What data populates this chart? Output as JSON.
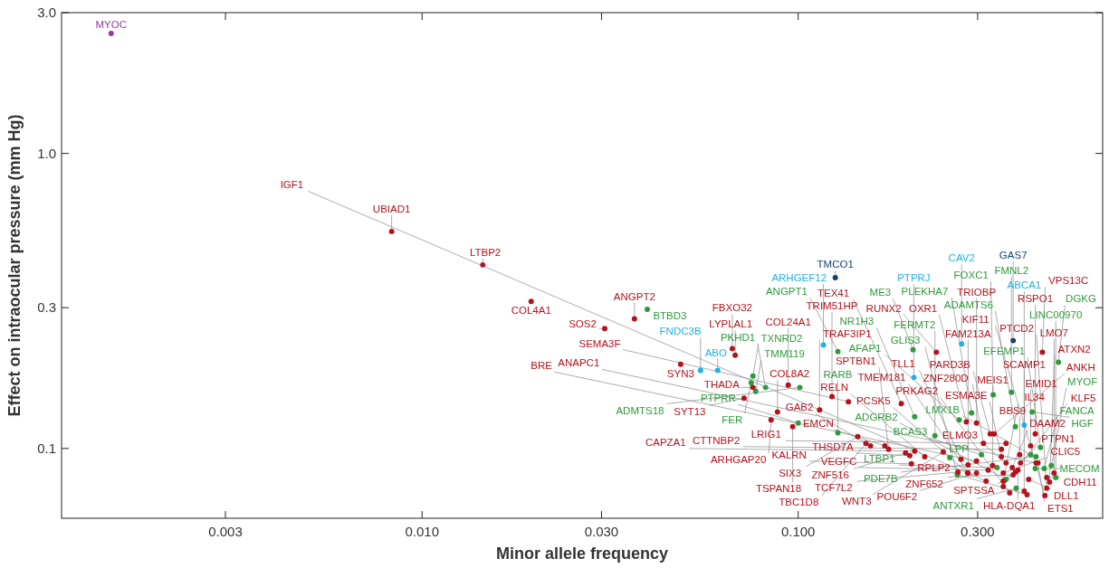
{
  "chart_data": {
    "type": "scatter",
    "xlabel": "Minor allele frequency",
    "ylabel": "Effect on intraocular pressure (mm Hg)",
    "log": "xy",
    "marker": "circle",
    "xlim": [
      0.0011,
      0.645
    ],
    "xticks": [
      {
        "value": 0.003,
        "label": "0.003"
      },
      {
        "value": 0.01,
        "label": "0.010"
      },
      {
        "value": 0.03,
        "label": "0.030"
      },
      {
        "value": 0.1,
        "label": "0.100"
      },
      {
        "value": 0.3,
        "label": "0.300"
      }
    ],
    "ylim": [
      0.058,
      3
    ],
    "yticks": [
      {
        "value": 0.1,
        "label": "0.1"
      },
      {
        "value": 0.3,
        "label": "0.3"
      },
      {
        "value": 1,
        "label": "1.0"
      },
      {
        "value": 3,
        "label": "3.0"
      }
    ],
    "series": [
      {
        "color": "#8e3f98",
        "x": [
          0.00149
        ],
        "values": [
          2.55
        ]
      },
      {
        "color": "#13426e",
        "x": [
          0.1255,
          0.373
        ],
        "values": [
          0.379,
          0.232
        ]
      },
      {
        "color": "#1fb1e6",
        "x": [
          0.1167,
          0.272,
          0.203,
          0.0611,
          0.055,
          0.399
        ],
        "values": [
          0.224,
          0.226,
          0.174,
          0.184,
          0.184,
          0.12
        ]
      },
      {
        "color": "#2e9b3b",
        "x": [
          0.0397,
          0.202,
          0.268,
          0.204,
          0.289,
          0.492,
          0.1275,
          0.101,
          0.0819,
          0.0758,
          0.075,
          0.0771,
          0.1,
          0.1275,
          0.415,
          0.33,
          0.429,
          0.427,
          0.451,
          0.484,
          0.369,
          0.38,
          0.419,
          0.441,
          0.471,
          0.307,
          0.378,
          0.231,
          0.253,
          0.265,
          0.338,
          0.357
        ],
        "values": [
          0.296,
          0.216,
          0.125,
          0.128,
          0.132,
          0.196,
          0.213,
          0.161,
          0.161,
          0.176,
          0.167,
          0.156,
          0.122,
          0.113,
          0.0952,
          0.152,
          0.0938,
          0.0855,
          0.0855,
          0.0797,
          0.155,
          0.0733,
          0.133,
          0.1007,
          0.0875,
          0.0952,
          0.1186,
          0.1104,
          0.0931,
          0.0814,
          0.0861,
          0.0786
        ]
      },
      {
        "color": "#b5121b",
        "x": [
          0.0083,
          0.0145,
          0.0195,
          0.0367,
          0.0306,
          0.0487,
          0.0668,
          0.068,
          0.0758,
          0.0718,
          0.0941,
          0.0881,
          0.0847,
          0.123,
          0.114,
          0.136,
          0.0967,
          0.144,
          0.233,
          0.446,
          0.188,
          0.28,
          0.1514,
          0.1557,
          0.17,
          0.174,
          0.193,
          0.198,
          0.204,
          0.2,
          0.217,
          0.243,
          0.266,
          0.271,
          0.282,
          0.283,
          0.283,
          0.298,
          0.298,
          0.298,
          0.311,
          0.316,
          0.32,
          0.324,
          0.332,
          0.329,
          0.347,
          0.347,
          0.351,
          0.351,
          0.351,
          0.357,
          0.357,
          0.371,
          0.373,
          0.378,
          0.384,
          0.388,
          0.39,
          0.399,
          0.406,
          0.41,
          0.365,
          0.415,
          0.427,
          0.429,
          0.434,
          0.453,
          0.458,
          0.458,
          0.466,
          0.479
        ],
        "values": [
          0.544,
          0.419,
          0.315,
          0.275,
          0.255,
          0.193,
          0.218,
          0.207,
          0.161,
          0.148,
          0.164,
          0.133,
          0.125,
          0.15,
          0.135,
          0.144,
          0.1186,
          0.1096,
          0.212,
          0.212,
          0.142,
          0.123,
          0.104,
          0.1021,
          0.1021,
          0.0993,
          0.0966,
          0.0945,
          0.0979,
          0.0887,
          0.0938,
          0.0972,
          0.0832,
          0.0919,
          0.0826,
          0.088,
          0.0826,
          0.0906,
          0.0826,
          0.122,
          0.104,
          0.0775,
          0.0844,
          0.112,
          0.112,
          0.0875,
          0.0938,
          0.0993,
          0.0775,
          0.0743,
          0.0826,
          0.0893,
          0.104,
          0.0861,
          0.0814,
          0.0832,
          0.0844,
          0.0952,
          0.0893,
          0.0717,
          0.0697,
          0.0786,
          0.0707,
          0.1021,
          0.112,
          0.0893,
          0.0893,
          0.0692,
          0.0797,
          0.0733,
          0.0769,
          0.0826
        ]
      }
    ],
    "annotations": [
      {
        "text": "MYOC",
        "x": 0.00149,
        "y": 2.55
      },
      {
        "text": "TMCO1",
        "x": 0.1255,
        "y": 0.379
      },
      {
        "text": "GAS7",
        "x": 0.373,
        "y": 0.232
      },
      {
        "text": "ARHGEF12",
        "x": 0.1167,
        "y": 0.224
      },
      {
        "text": "CAV2",
        "x": 0.272,
        "y": 0.226
      },
      {
        "text": "PTPRJ",
        "x": 0.203,
        "y": 0.174
      },
      {
        "text": "ABO",
        "x": 0.0611,
        "y": 0.184
      },
      {
        "text": "FNDC3B",
        "x": 0.055,
        "y": 0.184
      },
      {
        "text": "ABCA1",
        "x": 0.399,
        "y": 0.12
      },
      {
        "text": "BTBD3",
        "x": 0.0397,
        "y": 0.296
      },
      {
        "text": "ME3",
        "x": 0.202,
        "y": 0.216
      },
      {
        "text": "AFAP1",
        "x": 0.268,
        "y": 0.125
      },
      {
        "text": "NR1H3",
        "x": 0.204,
        "y": 0.128
      },
      {
        "text": "PLEKHA7",
        "x": 0.289,
        "y": 0.132
      },
      {
        "text": "DGKG",
        "x": 0.492,
        "y": 0.196
      },
      {
        "text": "ANGPT1",
        "x": 0.1275,
        "y": 0.213
      },
      {
        "text": "ADMTS18",
        "x": 0.101,
        "y": 0.161
      },
      {
        "text": "PKHD1",
        "x": 0.0819,
        "y": 0.161
      },
      {
        "text": "TXNRD2",
        "x": 0.0758,
        "y": 0.176
      },
      {
        "text": "FER",
        "x": 0.075,
        "y": 0.167
      },
      {
        "text": "TMM119",
        "x": 0.0771,
        "y": 0.156
      },
      {
        "text": "PTPRR",
        "x": 0.1,
        "y": 0.122
      },
      {
        "text": "RARB",
        "x": 0.1275,
        "y": 0.113
      },
      {
        "text": "LMX1B",
        "x": 0.415,
        "y": 0.0952
      },
      {
        "text": "FOXC1",
        "x": 0.33,
        "y": 0.152
      },
      {
        "text": "PDE7B",
        "x": 0.429,
        "y": 0.0938
      },
      {
        "text": "MECOM",
        "x": 0.427,
        "y": 0.0855
      },
      {
        "text": "FANCA",
        "x": 0.451,
        "y": 0.0855
      },
      {
        "text": "LINC00970",
        "x": 0.484,
        "y": 0.0797
      },
      {
        "text": "FMNL2",
        "x": 0.369,
        "y": 0.155
      },
      {
        "text": "ANTXR1",
        "x": 0.38,
        "y": 0.0733
      },
      {
        "text": "HGF",
        "x": 0.419,
        "y": 0.133
      },
      {
        "text": "EFEMP1",
        "x": 0.441,
        "y": 0.1007
      },
      {
        "text": "MYOF",
        "x": 0.471,
        "y": 0.0875
      },
      {
        "text": "BCAS3",
        "x": 0.307,
        "y": 0.0952
      },
      {
        "text": "ADAMTS6",
        "x": 0.378,
        "y": 0.1186
      },
      {
        "text": "FERMT2",
        "x": 0.231,
        "y": 0.1104
      },
      {
        "text": "LPP",
        "x": 0.253,
        "y": 0.0931
      },
      {
        "text": "GLIS3",
        "x": 0.265,
        "y": 0.0814
      },
      {
        "text": "LTBP1",
        "x": 0.338,
        "y": 0.0861
      },
      {
        "text": "ADGRB2",
        "x": 0.357,
        "y": 0.0786
      },
      {
        "text": "UBIAD1",
        "x": 0.0083,
        "y": 0.544
      },
      {
        "text": "LTBP2",
        "x": 0.0145,
        "y": 0.419
      },
      {
        "text": "COL4A1",
        "x": 0.0195,
        "y": 0.315
      },
      {
        "text": "ANGPT2",
        "x": 0.0367,
        "y": 0.275
      },
      {
        "text": "SOS2",
        "x": 0.0306,
        "y": 0.255
      },
      {
        "text": "SYN3",
        "x": 0.0487,
        "y": 0.193
      },
      {
        "text": "FBXO32",
        "x": 0.0668,
        "y": 0.218
      },
      {
        "text": "LYPLAL1",
        "x": 0.068,
        "y": 0.207
      },
      {
        "text": "THADA",
        "x": 0.0758,
        "y": 0.161
      },
      {
        "text": "SYT13",
        "x": 0.0718,
        "y": 0.148
      },
      {
        "text": "COL24A1",
        "x": 0.0941,
        "y": 0.164
      },
      {
        "text": "COL8A2",
        "x": 0.0881,
        "y": 0.133
      },
      {
        "text": "ARHGAP20",
        "x": 0.0847,
        "y": 0.125
      },
      {
        "text": "TRIM51HP",
        "x": 0.123,
        "y": 0.15
      },
      {
        "text": "TRAF3IP1",
        "x": 0.114,
        "y": 0.135
      },
      {
        "text": "SEMA3F",
        "x": 0.136,
        "y": 0.144
      },
      {
        "text": "TSPAN18",
        "x": 0.0967,
        "y": 0.1186
      },
      {
        "text": "SIX3",
        "x": 0.144,
        "y": 0.1096
      },
      {
        "text": "RUNX2",
        "x": 0.233,
        "y": 0.212
      },
      {
        "text": "VPS13C",
        "x": 0.446,
        "y": 0.212
      },
      {
        "text": "TEX41",
        "x": 0.188,
        "y": 0.142
      },
      {
        "text": "OXR1",
        "x": 0.28,
        "y": 0.123
      },
      {
        "text": "TBC1D8",
        "x": 0.1514,
        "y": 0.104
      },
      {
        "text": "GAB2",
        "x": 0.1557,
        "y": 0.1021
      },
      {
        "text": "EMCN",
        "x": 0.17,
        "y": 0.1021
      },
      {
        "text": "SPTBN1",
        "x": 0.174,
        "y": 0.0993
      },
      {
        "text": "ZNF516",
        "x": 0.193,
        "y": 0.0966
      },
      {
        "text": "THSD7A",
        "x": 0.198,
        "y": 0.0945
      },
      {
        "text": "CAPZA1",
        "x": 0.204,
        "y": 0.0979
      },
      {
        "text": "KALRN",
        "x": 0.2,
        "y": 0.0887
      },
      {
        "text": "RELN",
        "x": 0.217,
        "y": 0.0938
      },
      {
        "text": "WNT3",
        "x": 0.243,
        "y": 0.0972
      },
      {
        "text": "TCF7L2",
        "x": 0.266,
        "y": 0.0832
      },
      {
        "text": "TLL1",
        "x": 0.271,
        "y": 0.0919
      },
      {
        "text": "PCSK5",
        "x": 0.282,
        "y": 0.0826
      },
      {
        "text": "FAM213A",
        "x": 0.283,
        "y": 0.088
      },
      {
        "text": "TMEM181",
        "x": 0.283,
        "y": 0.0826
      },
      {
        "text": "BRE",
        "x": 0.298,
        "y": 0.0906
      },
      {
        "text": "POU6F2",
        "x": 0.298,
        "y": 0.0826
      },
      {
        "text": "TRIOBP",
        "x": 0.298,
        "y": 0.122
      },
      {
        "text": "ZNF280D",
        "x": 0.311,
        "y": 0.104
      },
      {
        "text": "IGF1",
        "x": 0.316,
        "y": 0.0775
      },
      {
        "text": "VEGFC",
        "x": 0.32,
        "y": 0.0844
      },
      {
        "text": "PARD3B",
        "x": 0.324,
        "y": 0.112
      },
      {
        "text": "ANKH",
        "x": 0.332,
        "y": 0.112
      },
      {
        "text": "MEIS1",
        "x": 0.329,
        "y": 0.0875
      },
      {
        "text": "ESMA3E",
        "x": 0.347,
        "y": 0.0938
      },
      {
        "text": "CTTNBP2",
        "x": 0.347,
        "y": 0.0993
      },
      {
        "text": "IL34",
        "x": 0.351,
        "y": 0.0775
      },
      {
        "text": "KLF5",
        "x": 0.351,
        "y": 0.0743
      },
      {
        "text": "CLIC5",
        "x": 0.351,
        "y": 0.0826
      },
      {
        "text": "ELMO3",
        "x": 0.357,
        "y": 0.0893
      },
      {
        "text": "LRIG1",
        "x": 0.357,
        "y": 0.104
      },
      {
        "text": "DAAM2",
        "x": 0.371,
        "y": 0.0861
      },
      {
        "text": "ZNF652",
        "x": 0.373,
        "y": 0.0814
      },
      {
        "text": "SPTSSA",
        "x": 0.378,
        "y": 0.0832
      },
      {
        "text": "HLA-DQA1",
        "x": 0.384,
        "y": 0.0844
      },
      {
        "text": "BBS9",
        "x": 0.388,
        "y": 0.0952
      },
      {
        "text": "PTPN1",
        "x": 0.39,
        "y": 0.0893
      },
      {
        "text": "SCAMP1",
        "x": 0.399,
        "y": 0.0717
      },
      {
        "text": "RPLP2",
        "x": 0.406,
        "y": 0.0697
      },
      {
        "text": "DLL1",
        "x": 0.41,
        "y": 0.0786
      },
      {
        "text": "PRKAG2",
        "x": 0.365,
        "y": 0.0707
      },
      {
        "text": "EMID1",
        "x": 0.415,
        "y": 0.1021
      },
      {
        "text": "RSPO1",
        "x": 0.427,
        "y": 0.112
      },
      {
        "text": "ANAPC1",
        "x": 0.429,
        "y": 0.0893
      },
      {
        "text": "ETS1",
        "x": 0.434,
        "y": 0.0893
      },
      {
        "text": "KIF11",
        "x": 0.453,
        "y": 0.0692
      },
      {
        "text": "CDH11",
        "x": 0.458,
        "y": 0.0797
      },
      {
        "text": "PTCD2",
        "x": 0.458,
        "y": 0.0733
      },
      {
        "text": "ATXN2",
        "x": 0.466,
        "y": 0.0769
      },
      {
        "text": "LMO7",
        "x": 0.479,
        "y": 0.0826
      }
    ]
  }
}
